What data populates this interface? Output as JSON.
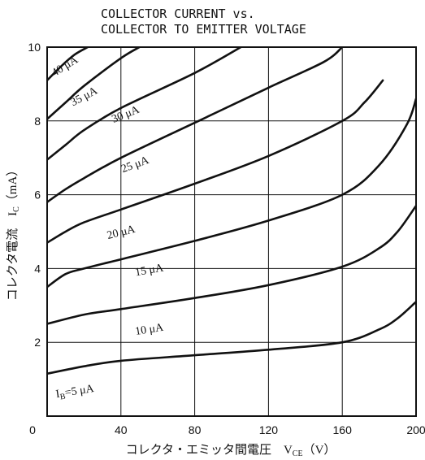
{
  "chart_data": {
    "type": "line",
    "title_lines": [
      "COLLECTOR CURRENT vs.",
      "COLLECTOR TO EMITTER VOLTAGE"
    ],
    "xlabel": "コレクタ・エミッタ間電圧　V",
    "xlabel_sub": "CE",
    "xlabel_unit": "（V）",
    "ylabel": "コレクタ電流　I",
    "ylabel_sub": "C",
    "ylabel_unit": "（mA）",
    "xlim": [
      0,
      200
    ],
    "ylim": [
      0,
      10
    ],
    "x_ticks": [
      "0",
      "40",
      "80",
      "120",
      "160",
      "200"
    ],
    "y_ticks": [
      "2",
      "4",
      "6",
      "8",
      "10"
    ],
    "grid": true,
    "series": [
      {
        "name": "I_B=5 μA",
        "label": "I",
        "label_sub": "B",
        "label_rest": "=5 μA",
        "points": [
          [
            0,
            1.15
          ],
          [
            20,
            1.35
          ],
          [
            40,
            1.5
          ],
          [
            80,
            1.65
          ],
          [
            120,
            1.8
          ],
          [
            160,
            2.0
          ],
          [
            180,
            2.35
          ],
          [
            190,
            2.65
          ],
          [
            200,
            3.1
          ]
        ]
      },
      {
        "name": "10 μA",
        "label": "10 μA",
        "points": [
          [
            0,
            2.5
          ],
          [
            20,
            2.75
          ],
          [
            40,
            2.9
          ],
          [
            80,
            3.2
          ],
          [
            120,
            3.55
          ],
          [
            160,
            4.05
          ],
          [
            180,
            4.55
          ],
          [
            190,
            5.0
          ],
          [
            200,
            5.7
          ]
        ]
      },
      {
        "name": "15 μA",
        "label": "15 μA",
        "points": [
          [
            0,
            3.5
          ],
          [
            10,
            3.85
          ],
          [
            20,
            4.0
          ],
          [
            40,
            4.25
          ],
          [
            80,
            4.75
          ],
          [
            120,
            5.3
          ],
          [
            160,
            6.0
          ],
          [
            180,
            6.8
          ],
          [
            195,
            7.9
          ],
          [
            200,
            8.6
          ]
        ]
      },
      {
        "name": "20 μA",
        "label": "20 μA",
        "points": [
          [
            0,
            4.7
          ],
          [
            10,
            5.0
          ],
          [
            20,
            5.25
          ],
          [
            40,
            5.6
          ],
          [
            80,
            6.3
          ],
          [
            120,
            7.05
          ],
          [
            160,
            8.0
          ],
          [
            172,
            8.5
          ],
          [
            182,
            9.1
          ]
        ]
      },
      {
        "name": "25 μA",
        "label": "25 μA",
        "points": [
          [
            0,
            5.8
          ],
          [
            10,
            6.15
          ],
          [
            20,
            6.45
          ],
          [
            40,
            7.0
          ],
          [
            80,
            7.95
          ],
          [
            120,
            8.9
          ],
          [
            150,
            9.6
          ],
          [
            160,
            10.0
          ]
        ]
      },
      {
        "name": "30 μA",
        "label": "30 μA",
        "points": [
          [
            0,
            6.95
          ],
          [
            10,
            7.35
          ],
          [
            20,
            7.75
          ],
          [
            40,
            8.35
          ],
          [
            80,
            9.3
          ],
          [
            105,
            10.0
          ]
        ]
      },
      {
        "name": "35 μA",
        "label": "35 μA",
        "points": [
          [
            0,
            8.05
          ],
          [
            10,
            8.5
          ],
          [
            20,
            8.95
          ],
          [
            40,
            9.7
          ],
          [
            50,
            10.0
          ]
        ]
      },
      {
        "name": "40 μA",
        "label": "40 μA",
        "points": [
          [
            0,
            9.1
          ],
          [
            8,
            9.5
          ],
          [
            15,
            9.8
          ],
          [
            22,
            10.0
          ]
        ]
      }
    ]
  }
}
